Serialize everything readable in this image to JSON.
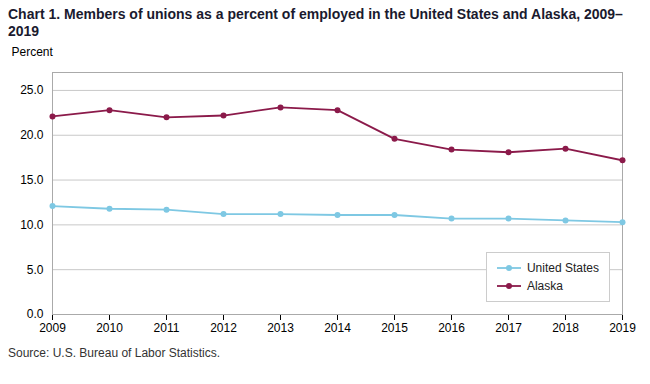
{
  "chart_data": {
    "type": "line",
    "title": "Chart 1. Members of unions as a percent of employed in the United States and Alaska, 2009–2019",
    "ylabel": "Percent",
    "source": "Source: U.S. Bureau of Labor Statistics.",
    "x": [
      2009,
      2010,
      2011,
      2012,
      2013,
      2014,
      2015,
      2016,
      2017,
      2018,
      2019
    ],
    "series": [
      {
        "name": "United States",
        "color": "#7ec8e3",
        "marker": "circle",
        "values": [
          12.1,
          11.8,
          11.7,
          11.2,
          11.2,
          11.1,
          11.1,
          10.7,
          10.7,
          10.5,
          10.3
        ]
      },
      {
        "name": "Alaska",
        "color": "#8b1a4a",
        "marker": "circle",
        "values": [
          22.1,
          22.8,
          22.0,
          22.2,
          23.1,
          22.8,
          19.6,
          18.4,
          18.1,
          18.5,
          17.2
        ]
      }
    ],
    "xlim": [
      2009,
      2019
    ],
    "xticks": [
      2009,
      2010,
      2011,
      2012,
      2013,
      2014,
      2015,
      2016,
      2017,
      2018,
      2019
    ],
    "ylim": [
      0,
      27.0
    ],
    "yticks": [
      {
        "value": 0.0,
        "label": "0.0"
      },
      {
        "value": 5.0,
        "label": "5.0"
      },
      {
        "value": 10.0,
        "label": "10.0"
      },
      {
        "value": 15.0,
        "label": "15.0"
      },
      {
        "value": 20.0,
        "label": "20.0"
      },
      {
        "value": 25.0,
        "label": "25.0"
      }
    ],
    "grid": true,
    "legend": "lower right"
  }
}
